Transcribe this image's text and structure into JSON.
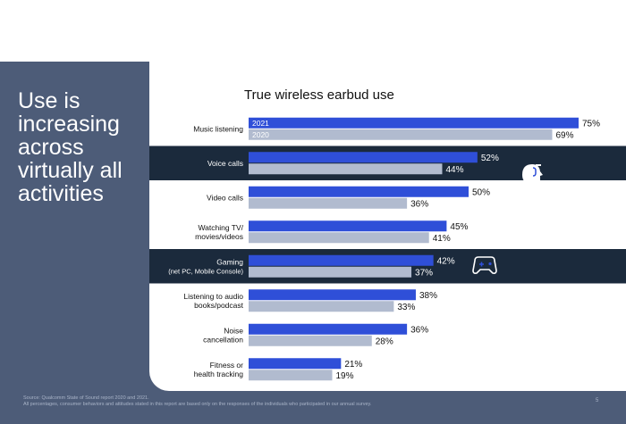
{
  "slide": {
    "headline": "Use is increasing across virtually all activities",
    "footer_source": "Source: Qualcomm State of Sound report 2020 and 2021.",
    "footer_note": "All percentages, consumer behaviors and attitudes stated in this report are based only on the responses of the individuals who participated in our annual survey.",
    "page_number": "5"
  },
  "colors": {
    "bar_2021": "#2f4fd8",
    "bar_2020": "#b1bbcf",
    "highlight_band": "#1b2a3c",
    "panel": "#4d5c78"
  },
  "chart_data": {
    "type": "bar",
    "orientation": "horizontal",
    "title": "True wireless earbud use",
    "series_labels_in_bars": [
      "2021",
      "2020"
    ],
    "categories": [
      {
        "lines": [
          "Music listening"
        ],
        "v2021": 75,
        "v2020": 69,
        "highlight": false,
        "icon": ""
      },
      {
        "lines": [
          "Voice calls"
        ],
        "v2021": 52,
        "v2020": 44,
        "highlight": true,
        "icon": "voice-head-icon"
      },
      {
        "lines": [
          "Video calls"
        ],
        "v2021": 50,
        "v2020": 36,
        "highlight": false,
        "icon": ""
      },
      {
        "lines": [
          "Watching TV/",
          "movies/videos"
        ],
        "v2021": 45,
        "v2020": 41,
        "highlight": false,
        "icon": ""
      },
      {
        "lines": [
          "Gaming",
          "(net PC, Mobile Console)"
        ],
        "v2021": 42,
        "v2020": 37,
        "highlight": true,
        "icon": "gamepad-icon"
      },
      {
        "lines": [
          "Listening to audio",
          "books/podcast"
        ],
        "v2021": 38,
        "v2020": 33,
        "highlight": false,
        "icon": ""
      },
      {
        "lines": [
          "Noise",
          "cancellation"
        ],
        "v2021": 36,
        "v2020": 28,
        "highlight": false,
        "icon": ""
      },
      {
        "lines": [
          "Fitness or",
          "health tracking"
        ],
        "v2021": 21,
        "v2020": 19,
        "highlight": false,
        "icon": ""
      }
    ],
    "value_suffix": "%",
    "xlim": [
      0,
      75
    ],
    "grid": false,
    "legend": "inside-first-bars"
  }
}
